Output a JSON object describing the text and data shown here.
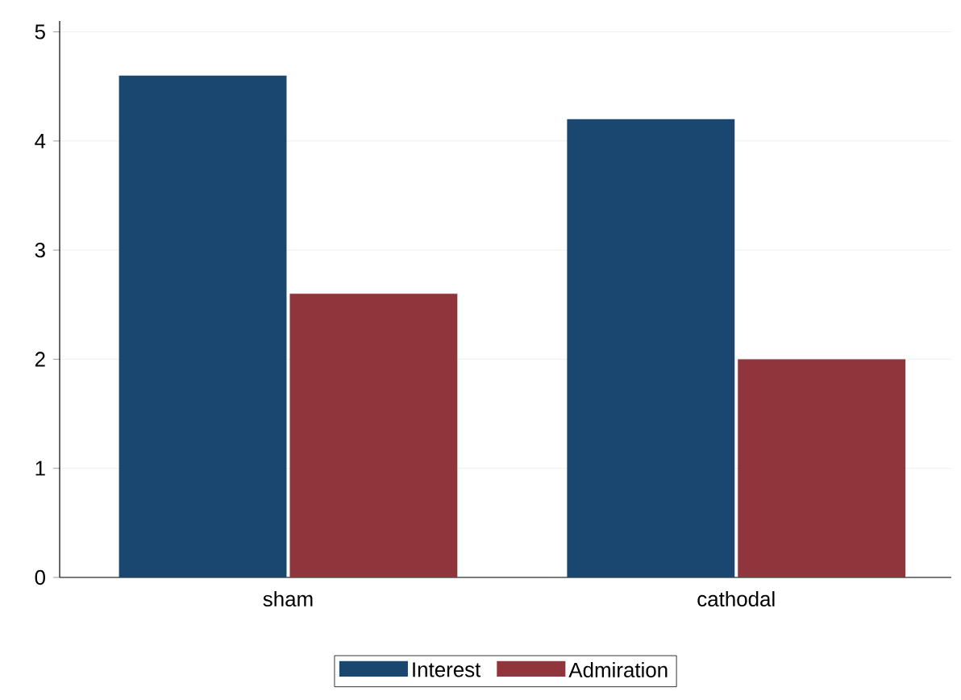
{
  "chart_data": {
    "type": "bar",
    "categories": [
      "sham",
      "cathodal"
    ],
    "series": [
      {
        "name": "Interest",
        "color": "#1a476f",
        "values": [
          4.6,
          4.2
        ]
      },
      {
        "name": "Admiration",
        "color": "#90353b",
        "values": [
          2.6,
          2.0
        ]
      }
    ],
    "ylim": [
      0,
      5.1
    ],
    "yticks": [
      0,
      1,
      2,
      3,
      4,
      5
    ],
    "grid": "y",
    "legend": "bottom"
  }
}
